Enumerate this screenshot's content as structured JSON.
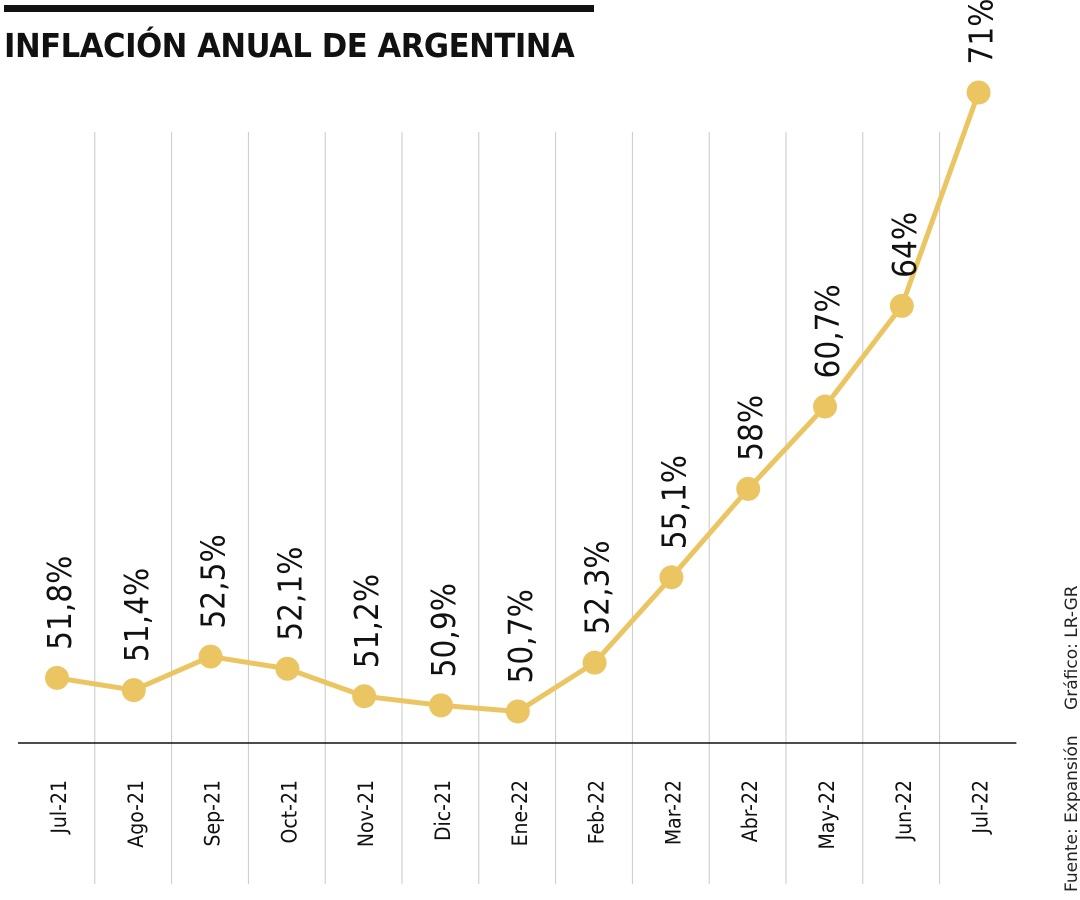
{
  "title": "INFLACIÓN ANUAL DE ARGENTINA",
  "source_text": "Fuente: Expansión",
  "credit_text": "Gráfico: LR-GR",
  "colors": {
    "line": "#EBC562",
    "axis": "#111111",
    "grid": "#c8c8c8",
    "text": "#111111"
  },
  "chart_data": {
    "type": "line",
    "title": "INFLACIÓN ANUAL DE ARGENTINA",
    "xlabel": "",
    "ylabel": "",
    "grid": "vertical",
    "categories": [
      "Jul-21",
      "Ago-21",
      "Sep-21",
      "Oct-21",
      "Nov-21",
      "Dic-21",
      "Ene-22",
      "Feb-22",
      "Mar-22",
      "Abr-22",
      "May-22",
      "Jun-22",
      "Jul-22"
    ],
    "values": [
      51.8,
      51.4,
      52.5,
      52.1,
      51.2,
      50.9,
      50.7,
      52.3,
      55.1,
      58,
      60.7,
      64,
      71
    ],
    "labels": [
      "51,8%",
      "51,4%",
      "52,5%",
      "52,1%",
      "51,2%",
      "50,9%",
      "50,7%",
      "52,3%",
      "55,1%",
      "58%",
      "60,7%",
      "64%",
      "71%"
    ],
    "ylim": [
      49.6,
      72
    ]
  }
}
